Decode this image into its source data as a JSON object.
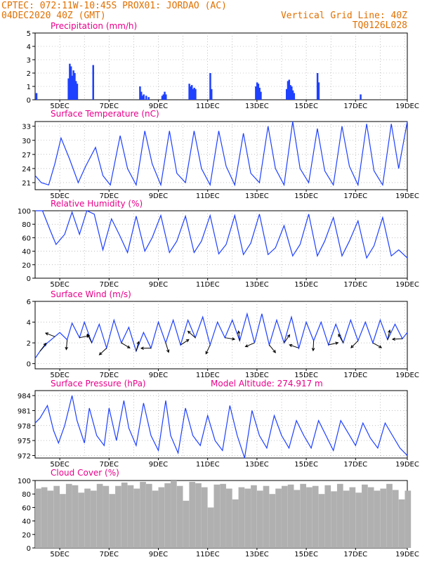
{
  "header": {
    "line1_left": "CPTEC:  072:11W-10:45S  PROX01: JORDAO (AC)",
    "line2_left": "04DEC2020 40Z (GMT)",
    "line2_right": "Vertical Grid Line: 40Z",
    "line3_right": "TQ0126L028"
  },
  "colors": {
    "header": "#e07000",
    "title": "#e8008a",
    "line": "#1e40ff",
    "bar": "#1e40ff",
    "cloud": "#b0b0b0",
    "grid": "#999999"
  },
  "date_ticks": [
    "5DEC",
    "7DEC",
    "9DEC",
    "11DEC",
    "13DEC",
    "15DEC",
    "17DEC",
    "19DEC"
  ],
  "chart_data": [
    {
      "type": "bar",
      "title": "Precipitation (mm/h)",
      "x_unit": "days since 04DEC 00Z",
      "ylim": [
        0,
        5
      ],
      "yticks": [
        0,
        1,
        2,
        3,
        4,
        5
      ],
      "grid": true,
      "x": [
        0.05,
        1.35,
        1.4,
        1.45,
        1.5,
        1.55,
        1.6,
        1.65,
        1.7,
        2.35,
        4.25,
        4.3,
        4.35,
        4.4,
        4.5,
        4.6,
        5.15,
        5.2,
        5.25,
        5.3,
        6.25,
        6.3,
        6.35,
        6.4,
        6.45,
        6.5,
        7.1,
        7.15,
        8.95,
        9.0,
        9.05,
        9.1,
        9.15,
        10.2,
        10.25,
        10.3,
        10.35,
        10.4,
        10.45,
        10.5,
        11.45,
        11.5,
        13.2,
        16.5
      ],
      "values": [
        0.5,
        1.6,
        2.7,
        2.5,
        1.8,
        2.2,
        2.0,
        1.4,
        1.2,
        2.6,
        1.0,
        0.6,
        0.3,
        0.4,
        0.3,
        0.2,
        0.3,
        0.4,
        0.6,
        0.4,
        1.2,
        1.0,
        1.1,
        0.8,
        0.9,
        0.8,
        2.0,
        0.8,
        1.0,
        1.3,
        1.2,
        0.9,
        0.6,
        0.8,
        1.4,
        1.5,
        1.1,
        1.0,
        0.7,
        0.5,
        2.0,
        1.3,
        0.4,
        0.1
      ]
    },
    {
      "type": "line",
      "title": "Surface Temperature (nC)",
      "x_unit": "days since 04DEC 00Z",
      "ylim": [
        19.5,
        34
      ],
      "yticks": [
        21,
        24,
        27,
        30,
        33
      ],
      "grid": true,
      "x": [
        0.0,
        0.25,
        0.55,
        0.8,
        1.05,
        1.4,
        1.75,
        2.05,
        2.45,
        2.75,
        3.05,
        3.45,
        3.75,
        4.1,
        4.45,
        4.75,
        5.1,
        5.45,
        5.75,
        6.1,
        6.45,
        6.75,
        7.1,
        7.45,
        7.75,
        8.1,
        8.45,
        8.75,
        9.1,
        9.45,
        9.75,
        10.1,
        10.45,
        10.75,
        11.1,
        11.45,
        11.75,
        12.1,
        12.45,
        12.75,
        13.1,
        13.45,
        13.75,
        14.1,
        14.45,
        14.75,
        15.1
      ],
      "y": [
        22.5,
        21.0,
        20.5,
        25.0,
        30.5,
        26.0,
        21.0,
        24.5,
        28.5,
        22.5,
        20.5,
        31.0,
        24.0,
        20.5,
        32.0,
        25.0,
        20.5,
        32.0,
        23.0,
        21.0,
        32.0,
        24.0,
        20.5,
        32.0,
        24.5,
        20.5,
        31.5,
        23.0,
        21.0,
        33.0,
        24.0,
        20.5,
        34.0,
        24.0,
        21.0,
        32.5,
        23.5,
        20.5,
        33.0,
        24.5,
        20.5,
        33.5,
        23.5,
        20.5,
        33.5,
        24.0,
        34.0
      ]
    },
    {
      "type": "line",
      "title": "Relative Humidity (%)",
      "x_unit": "days since 04DEC 00Z",
      "ylim": [
        0,
        100
      ],
      "yticks": [
        0,
        20,
        40,
        60,
        80,
        100
      ],
      "grid": true,
      "x": [
        0.0,
        0.3,
        0.6,
        0.85,
        1.2,
        1.5,
        1.8,
        2.1,
        2.4,
        2.75,
        3.1,
        3.45,
        3.75,
        4.1,
        4.45,
        4.75,
        5.1,
        5.45,
        5.75,
        6.1,
        6.45,
        6.75,
        7.1,
        7.45,
        7.75,
        8.1,
        8.45,
        8.75,
        9.1,
        9.45,
        9.75,
        10.1,
        10.45,
        10.75,
        11.1,
        11.45,
        11.75,
        12.1,
        12.45,
        12.75,
        13.1,
        13.45,
        13.75,
        14.1,
        14.45,
        14.75,
        15.1
      ],
      "y": [
        100,
        100,
        72,
        50,
        65,
        98,
        65,
        100,
        95,
        42,
        88,
        62,
        38,
        92,
        40,
        60,
        93,
        38,
        55,
        92,
        38,
        55,
        93,
        36,
        50,
        93,
        35,
        52,
        95,
        35,
        45,
        78,
        33,
        50,
        95,
        33,
        55,
        90,
        33,
        55,
        85,
        30,
        48,
        90,
        33,
        42,
        30
      ]
    },
    {
      "type": "line",
      "title": "Surface Wind (m/s)",
      "x_unit": "days since 04DEC 00Z",
      "ylim": [
        -0.5,
        6
      ],
      "yticks": [
        0,
        2,
        4,
        6
      ],
      "grid": true,
      "note": "wind barbs drawn as arrows along the speed line",
      "x": [
        0.0,
        0.2,
        0.5,
        0.8,
        1.0,
        1.3,
        1.5,
        1.8,
        2.0,
        2.3,
        2.6,
        2.9,
        3.2,
        3.5,
        3.8,
        4.1,
        4.4,
        4.7,
        5.0,
        5.3,
        5.6,
        5.9,
        6.2,
        6.5,
        6.8,
        7.1,
        7.4,
        7.7,
        8.0,
        8.3,
        8.6,
        8.9,
        9.2,
        9.5,
        9.8,
        10.1,
        10.4,
        10.7,
        11.0,
        11.3,
        11.6,
        11.9,
        12.2,
        12.5,
        12.8,
        13.1,
        13.4,
        13.7,
        14.0,
        14.3,
        14.6,
        14.9,
        15.1
      ],
      "y": [
        0.5,
        1.2,
        2.0,
        2.6,
        3.0,
        2.3,
        3.9,
        2.5,
        4.0,
        2.0,
        3.8,
        1.5,
        4.2,
        2.0,
        3.5,
        1.2,
        3.0,
        1.5,
        4.0,
        2.0,
        4.2,
        1.8,
        4.2,
        2.5,
        4.5,
        1.8,
        4.0,
        2.5,
        4.2,
        2.2,
        4.8,
        2.0,
        4.8,
        1.8,
        4.2,
        2.0,
        4.5,
        1.5,
        4.0,
        2.2,
        4.0,
        1.8,
        3.8,
        2.0,
        4.2,
        2.2,
        4.0,
        2.0,
        4.2,
        2.3,
        3.8,
        2.4,
        3.0
      ]
    },
    {
      "type": "line",
      "title": "Surface Pressure (hPa)",
      "annotation": "Model Altitude: 274.917 m",
      "x_unit": "days since 04DEC 00Z",
      "ylim": [
        971.5,
        985
      ],
      "yticks": [
        972,
        975,
        978,
        981,
        984
      ],
      "grid": true,
      "x": [
        0.0,
        0.2,
        0.5,
        0.75,
        0.95,
        1.2,
        1.5,
        1.7,
        2.0,
        2.2,
        2.5,
        2.8,
        3.0,
        3.3,
        3.6,
        3.8,
        4.1,
        4.4,
        4.7,
        5.0,
        5.3,
        5.5,
        5.8,
        6.1,
        6.4,
        6.7,
        7.0,
        7.3,
        7.6,
        7.9,
        8.2,
        8.5,
        8.8,
        9.1,
        9.4,
        9.7,
        10.0,
        10.3,
        10.6,
        10.9,
        11.2,
        11.5,
        11.8,
        12.1,
        12.4,
        12.7,
        13.0,
        13.3,
        13.6,
        13.9,
        14.2,
        14.5,
        14.8,
        15.1
      ],
      "y": [
        978.5,
        979.5,
        982.0,
        977.0,
        974.5,
        978.0,
        984.0,
        979.0,
        974.5,
        981.5,
        976.0,
        974.0,
        981.5,
        975.0,
        983.0,
        977.5,
        974.0,
        982.5,
        976.0,
        973.0,
        983.0,
        976.0,
        972.5,
        981.5,
        976.0,
        974.0,
        980.0,
        975.0,
        973.0,
        982.0,
        976.0,
        971.5,
        981.0,
        976.0,
        973.5,
        980.0,
        976.0,
        973.5,
        979.0,
        976.0,
        973.5,
        979.0,
        976.0,
        973.0,
        979.0,
        976.5,
        974.0,
        978.5,
        975.5,
        973.5,
        978.5,
        976.0,
        973.5,
        972.0
      ]
    },
    {
      "type": "bar",
      "title": "Cloud Cover (%)",
      "x_unit": "days since 04DEC 00Z",
      "ylim": [
        0,
        100
      ],
      "yticks": [
        0,
        20,
        40,
        60,
        80,
        100
      ],
      "grid": false,
      "x": [
        0.0,
        0.25,
        0.5,
        0.75,
        1.0,
        1.25,
        1.5,
        1.75,
        2.0,
        2.25,
        2.5,
        2.75,
        3.0,
        3.25,
        3.5,
        3.75,
        4.0,
        4.25,
        4.5,
        4.75,
        5.0,
        5.25,
        5.5,
        5.75,
        6.0,
        6.25,
        6.5,
        6.75,
        7.0,
        7.25,
        7.5,
        7.75,
        8.0,
        8.25,
        8.5,
        8.75,
        9.0,
        9.25,
        9.5,
        9.75,
        10.0,
        10.25,
        10.5,
        10.75,
        11.0,
        11.25,
        11.5,
        11.75,
        12.0,
        12.25,
        12.5,
        12.75,
        13.0,
        13.25,
        13.5,
        13.75,
        14.0,
        14.25,
        14.5,
        14.75,
        15.0
      ],
      "values": [
        88,
        90,
        85,
        92,
        80,
        95,
        93,
        82,
        88,
        85,
        95,
        92,
        80,
        92,
        97,
        93,
        88,
        98,
        95,
        85,
        90,
        96,
        100,
        92,
        70,
        98,
        96,
        90,
        60,
        94,
        95,
        88,
        72,
        90,
        88,
        93,
        85,
        92,
        80,
        88,
        92,
        94,
        86,
        95,
        90,
        92,
        80,
        93,
        84,
        95,
        85,
        90,
        82,
        94,
        90,
        85,
        88,
        95,
        86,
        72,
        85
      ]
    }
  ]
}
